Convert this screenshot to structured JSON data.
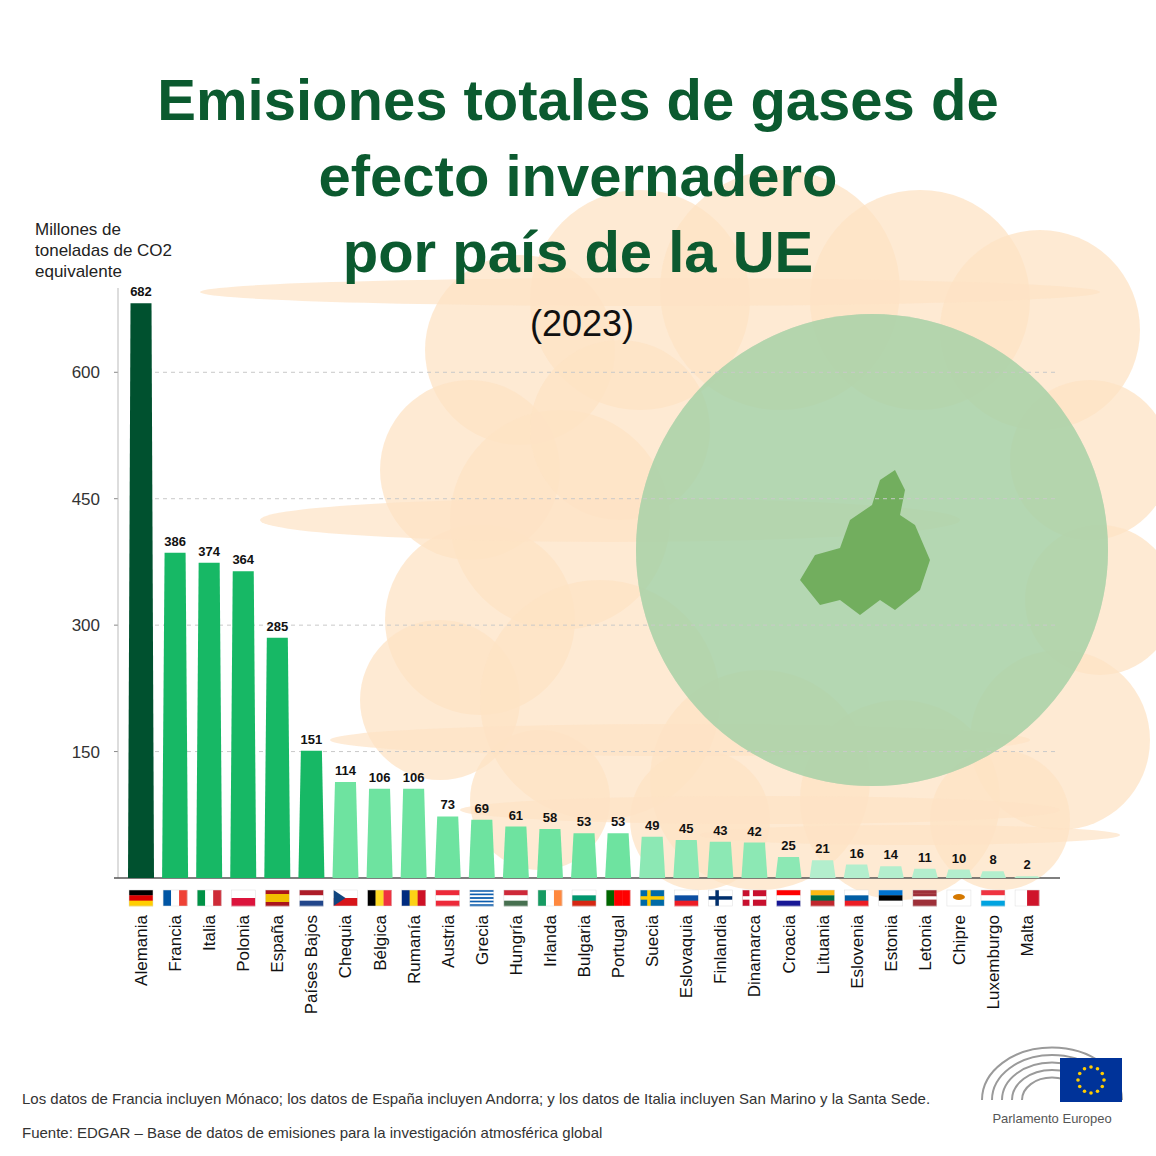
{
  "chart_data": {
    "type": "bar",
    "title": "Emisiones totales de gases de\nefecto invernadero\npor país de la UE",
    "subtitle": "(2023)",
    "y_label": "Millones de\ntoneladas de CO2\nequivalente",
    "categories": [
      "Alemania",
      "Francia",
      "Italia",
      "Polonia",
      "España",
      "Países Bajos",
      "Chequia",
      "Bélgica",
      "Rumanía",
      "Austria",
      "Grecia",
      "Hungría",
      "Irlanda",
      "Bulgaria",
      "Portugal",
      "Suecia",
      "Eslovaquia",
      "Finlandia",
      "Dinamarca",
      "Croacia",
      "Lituania",
      "Eslovenia",
      "Estonia",
      "Letonia",
      "Chipre",
      "Luxemburgo",
      "Malta"
    ],
    "values": [
      682,
      386,
      374,
      364,
      285,
      151,
      114,
      106,
      106,
      73,
      69,
      61,
      58,
      53,
      53,
      49,
      45,
      43,
      42,
      25,
      21,
      16,
      14,
      11,
      10,
      8,
      2
    ],
    "colors": [
      "#00512f",
      "#17b865",
      "#17b865",
      "#17b865",
      "#17b865",
      "#17b865",
      "#6ee3a0",
      "#6ee3a0",
      "#6ee3a0",
      "#6ee3a0",
      "#6ee3a0",
      "#6ee3a0",
      "#6ee3a0",
      "#6ee3a0",
      "#6ee3a0",
      "#8ce8b4",
      "#8ce8b4",
      "#8ce8b4",
      "#8ce8b4",
      "#8ce8b4",
      "#b3eecd",
      "#b3eecd",
      "#b3eecd",
      "#b3eecd",
      "#b3eecd",
      "#b3eecd",
      "#b3eecd"
    ],
    "ylim": [
      0,
      700
    ],
    "yticks": [
      150,
      300,
      450,
      600
    ],
    "grid": true,
    "data_labels": true,
    "footnote": "Los datos de Francia incluyen Mónaco; los datos de España incluyen Andorra; y los datos de Italia incluyen San Marino y la Santa Sede.",
    "source": "Fuente: EDGAR – Base de datos de emisiones para la investigación atmosférica global",
    "annotations": [
      "Parlamento Europeo"
    ]
  }
}
